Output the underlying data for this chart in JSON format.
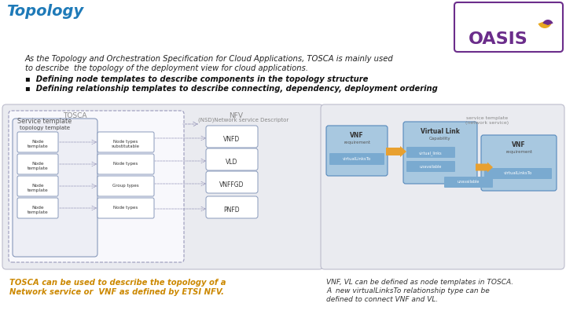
{
  "title": "Topology",
  "title_color": "#1E7AB8",
  "bg_color": "#FFFFFF",
  "intro_line1": "As the Topology and Orchestration Specification for Cloud Applications, TOSCA is mainly used",
  "intro_line2": "to describe  the topology of the deployment view for cloud applications.",
  "bullet1": "Defining node templates to describe components in the topology structure",
  "bullet2": "Defining relationship templates to describe connecting, dependency, deployment ordering",
  "cap_left1": "TOSCA can be used to describe the topology of a",
  "cap_left2": "Network service or  VNF as defined by ETSI NFV.",
  "cap_right1": "VNF, VL can be defined as node templates in TOSCA.",
  "cap_right2": "A  new virtualLinksTo relationship type can be",
  "cap_right3": "defined to connect VNF and VL.",
  "oasis_purple": "#6B2D8B",
  "oasis_yellow": "#E8A820",
  "diagram_bg": "#EAEBF0",
  "diagram_border": "#BCBCCC",
  "svc_border": "#9999BB",
  "topo_border": "#8899BB",
  "node_fill": "#FFFFFF",
  "node_border": "#8899BB",
  "nfv_fill": "#FFFFFF",
  "nfv_border": "#8899BB",
  "right_bg": "#EAEBF0",
  "blue_fill": "#A8C8E0",
  "blue_border": "#5588BB",
  "blue_tag": "#7AAAD0",
  "orange_fill": "#E8A030",
  "text_dark": "#333333",
  "text_mid": "#555555",
  "text_light": "#888888",
  "tosca_label": "TOSCA",
  "nfv_label": "NFV",
  "svc_label": "Service template",
  "nsd_label": "(NSD)Network service Descriptor",
  "topo_label": "topology template",
  "node_boxes": [
    "Node\ntemplate",
    "Node\ntemplate",
    "Node\ntemplate",
    "Node\ntemplate"
  ],
  "type_boxes": [
    "Node types\nsubstitutable",
    "Node types",
    "Group types",
    "Node types"
  ],
  "nfv_boxes": [
    "VNFD",
    "VLD",
    "VNFFGD",
    "PNFD"
  ],
  "svc_template_right": "service template\n(network service)"
}
